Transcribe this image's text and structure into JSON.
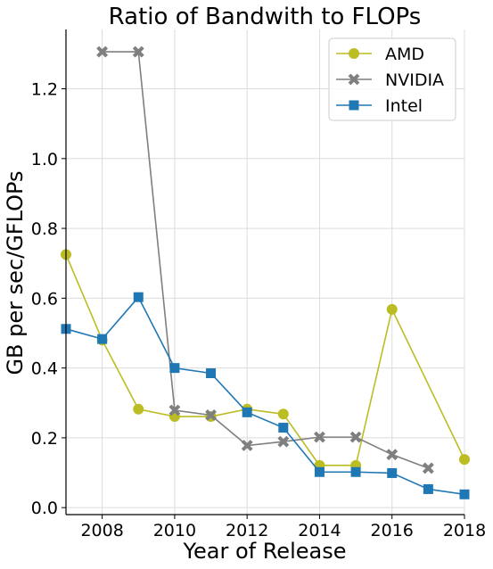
{
  "chart_data": {
    "type": "line",
    "title": "Ratio of Bandwith to FLOPs",
    "xlabel": "Year of Release",
    "ylabel": "GB per sec/GFLOPs",
    "xlim": [
      2007,
      2018
    ],
    "ylim": [
      -0.02,
      1.37
    ],
    "xticks": [
      2008,
      2010,
      2012,
      2014,
      2016,
      2018
    ],
    "yticks": [
      0.0,
      0.2,
      0.4,
      0.6,
      0.8,
      1.0,
      1.2
    ],
    "xtick_labels": [
      "2008",
      "2010",
      "2012",
      "2014",
      "2016",
      "2018"
    ],
    "ytick_labels": [
      "0.0",
      "0.2",
      "0.4",
      "0.6",
      "0.8",
      "1.0",
      "1.2"
    ],
    "grid": true,
    "legend_position": "top-right",
    "series": [
      {
        "name": "AMD",
        "color": "#bcbd22",
        "marker": "circle",
        "x": [
          2007,
          2008,
          2009,
          2010,
          2011,
          2012,
          2013,
          2014,
          2015,
          2016,
          2018
        ],
        "y": [
          0.725,
          0.48,
          0.282,
          0.261,
          0.261,
          0.282,
          0.268,
          0.121,
          0.121,
          0.568,
          0.138
        ]
      },
      {
        "name": "NVIDIA",
        "color": "#7f7f7f",
        "marker": "x",
        "x": [
          2008,
          2009,
          2010,
          2011,
          2012,
          2013,
          2014,
          2015,
          2016,
          2017
        ],
        "y": [
          1.306,
          1.306,
          0.279,
          0.265,
          0.178,
          0.189,
          0.202,
          0.202,
          0.152,
          0.113
        ]
      },
      {
        "name": "Intel",
        "color": "#1f77b4",
        "marker": "square",
        "x": [
          2007,
          2008,
          2009,
          2010,
          2011,
          2012,
          2013,
          2014,
          2015,
          2016,
          2017,
          2018
        ],
        "y": [
          0.512,
          0.483,
          0.603,
          0.4,
          0.385,
          0.273,
          0.229,
          0.102,
          0.102,
          0.099,
          0.053,
          0.038
        ]
      }
    ]
  }
}
